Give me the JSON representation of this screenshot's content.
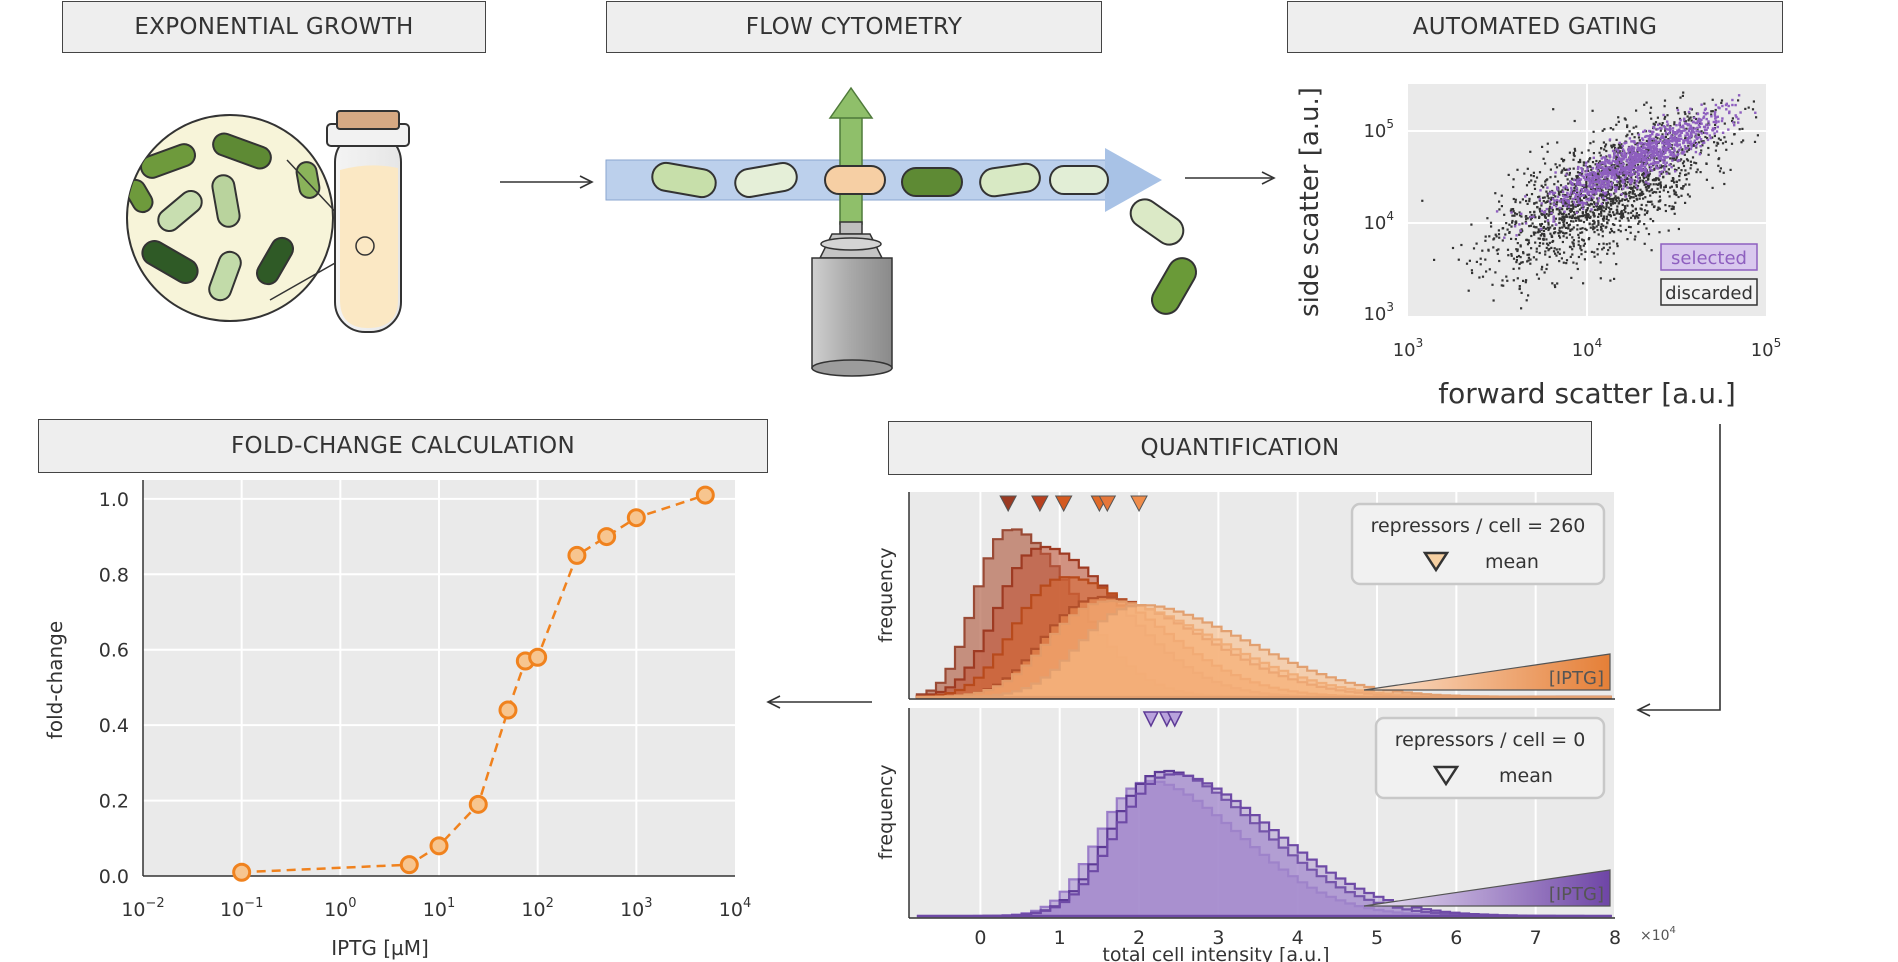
{
  "banners": {
    "growth": "EXPONENTIAL GROWTH",
    "cytometry": "FLOW CYTOMETRY",
    "gating": "AUTOMATED GATING",
    "foldchange": "FOLD-CHANGE CALCULATION",
    "quant": "QUANTIFICATION"
  },
  "gating": {
    "xlabel": "forward scatter [a.u.]",
    "ylabel": "side scatter [a.u.]",
    "xticks": [
      {
        "b": "10",
        "e": "3"
      },
      {
        "b": "10",
        "e": "4"
      },
      {
        "b": "10",
        "e": "5"
      }
    ],
    "yticks": [
      {
        "b": "10",
        "e": "5"
      },
      {
        "b": "10",
        "e": "4"
      },
      {
        "b": "10",
        "e": "3"
      }
    ],
    "legend_selected": "selected",
    "legend_discarded": "discarded",
    "selected_color": "#8e5fbf",
    "discarded_color": "#333333"
  },
  "quant": {
    "top_legend_title": "repressors / cell = 260",
    "bottom_legend_title": "repressors / cell = 0",
    "legend_mean": "mean",
    "ylabel": "frequency",
    "xlabel": "total cell intensity [a.u.]",
    "xticks": [
      "0",
      "1",
      "2",
      "3",
      "4",
      "5",
      "6",
      "7",
      "8"
    ],
    "xscale": "×10",
    "xscale_exp": "4",
    "iptg": "[IPTG]",
    "orange_color": "#e07a30",
    "purple_color": "#7a52b0"
  },
  "chart_data": {
    "type": "scatter",
    "title": "FOLD-CHANGE CALCULATION",
    "xlabel": "IPTG [µM]",
    "ylabel": "fold-change",
    "xscale": "log",
    "xlim": [
      0.01,
      10000
    ],
    "ylim": [
      0,
      1.05
    ],
    "xtick_labels": [
      {
        "b": "10",
        "e": "−2"
      },
      {
        "b": "10",
        "e": "−1"
      },
      {
        "b": "10",
        "e": "0"
      },
      {
        "b": "10",
        "e": "1"
      },
      {
        "b": "10",
        "e": "2"
      },
      {
        "b": "10",
        "e": "3"
      },
      {
        "b": "10",
        "e": "4"
      }
    ],
    "yticks": [
      "0.0",
      "0.2",
      "0.4",
      "0.6",
      "0.8",
      "1.0"
    ],
    "color": "#f0821e",
    "series": [
      {
        "x": [
          0.1,
          5,
          10,
          25,
          50,
          75,
          100,
          250,
          500,
          1000,
          5000
        ],
        "y": [
          0.01,
          0.03,
          0.08,
          0.19,
          0.44,
          0.57,
          0.58,
          0.85,
          0.9,
          0.95,
          1.01
        ]
      }
    ]
  }
}
